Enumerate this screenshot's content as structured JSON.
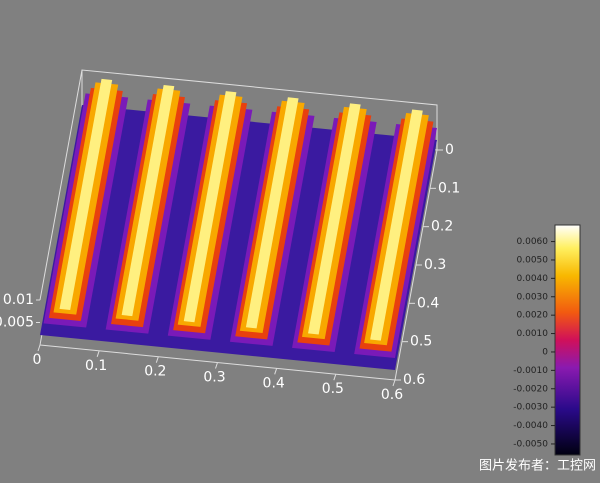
{
  "chart_data": {
    "type": "surface",
    "xticks": [
      0,
      0.1,
      0.2,
      0.3,
      0.4,
      0.5,
      0.6
    ],
    "xlim": [
      0,
      0.6
    ],
    "yticks": [
      0,
      0.1,
      0.2,
      0.3,
      0.4,
      0.5,
      0.6
    ],
    "ylim": [
      0,
      0.6
    ],
    "zticks": [
      0.005,
      0.01
    ],
    "colorbar": {
      "lim": [
        -0.0056,
        0.0069
      ],
      "ticks": [
        {
          "value": 0.006,
          "label": "0.0060"
        },
        {
          "value": 0.005,
          "label": "0.0050"
        },
        {
          "value": 0.004,
          "label": "0.0040"
        },
        {
          "value": 0.003,
          "label": "0.0030"
        },
        {
          "value": 0.002,
          "label": "0.0020"
        },
        {
          "value": 0.001,
          "label": "0.0010"
        },
        0,
        {
          "value": -0.001,
          "label": "-0.0010"
        },
        {
          "value": -0.002,
          "label": "-0.0020"
        },
        {
          "value": -0.003,
          "label": "-0.0030"
        },
        {
          "value": -0.004,
          "label": "-0.0040"
        },
        {
          "value": -0.005,
          "label": "-0.0050"
        }
      ]
    }
  },
  "watermark": "图片发布者：工控网"
}
